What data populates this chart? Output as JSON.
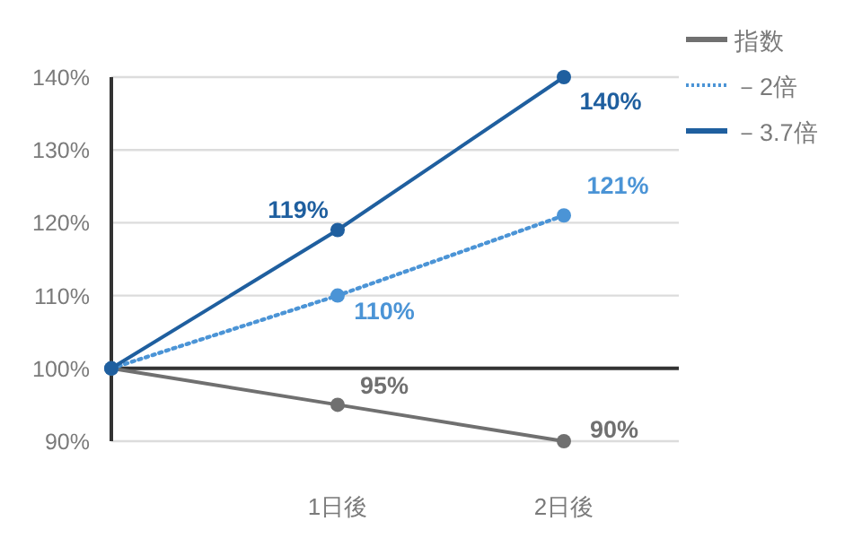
{
  "chart_data": {
    "type": "line",
    "categories": [
      null,
      "1日後",
      "2日後"
    ],
    "series": [
      {
        "name": "指数",
        "color": "#707070",
        "values": [
          100,
          95,
          90
        ],
        "value_labels": [
          null,
          "95%",
          "90%"
        ],
        "line_style": "solid"
      },
      {
        "name": "－2倍",
        "color": "#4b94d6",
        "values": [
          100,
          110,
          121
        ],
        "value_labels": [
          null,
          "110%",
          "121%"
        ],
        "line_style": "dotted"
      },
      {
        "name": "－3.7倍",
        "color": "#1f5f9f",
        "values": [
          100,
          119,
          140
        ],
        "value_labels": [
          null,
          "119%",
          "140%"
        ],
        "line_style": "solid"
      }
    ],
    "ylim": [
      90,
      140
    ],
    "yticks": [
      {
        "value": 90,
        "label": "90%"
      },
      {
        "value": 100,
        "label": "100%"
      },
      {
        "value": 110,
        "label": "110%"
      },
      {
        "value": 120,
        "label": "120%"
      },
      {
        "value": 130,
        "label": "130%"
      },
      {
        "value": 140,
        "label": "140%"
      }
    ],
    "ref_lines": [
      {
        "axis": "y",
        "value": 100,
        "color": "#333333"
      }
    ],
    "grid": "y",
    "legend": "top right",
    "marker": "circle"
  }
}
